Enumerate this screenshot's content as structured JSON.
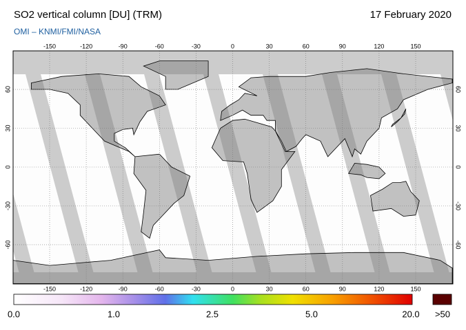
{
  "header": {
    "title": "SO2 vertical column [DU] (TRM)",
    "credit": "OMI  –  KNMI/FMI/NASA",
    "date": "17 February 2020"
  },
  "map": {
    "lon_ticks": [
      -150,
      -120,
      -90,
      -60,
      -30,
      0,
      30,
      60,
      90,
      120,
      150
    ],
    "lat_ticks": [
      60,
      30,
      0,
      -30,
      -60
    ]
  },
  "colorbar": {
    "labels": [
      "0.0",
      "1.0",
      "2.5",
      "5.0",
      "20.0",
      ">50"
    ]
  }
}
